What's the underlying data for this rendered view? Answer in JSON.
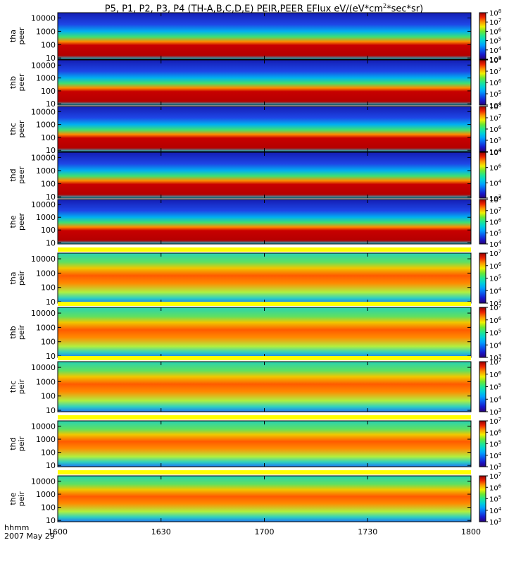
{
  "title_parts": {
    "prefix": "P5, P1, P2, P3, P4 (TH-A,B,C,D,E) PEIR,PEER EFlux eV/(eV*cm",
    "sup": "2",
    "suffix": "*sec*sr)"
  },
  "footer": {
    "time_label": "hhmm",
    "date_label": "2007 May 29"
  },
  "chart_data": {
    "type": "heatmap",
    "title": "P5, P1, P2, P3, P4 (TH-A,B,C,D,E) PEIR,PEER EFlux eV/(eV*cm2*sec*sr)",
    "x_ticks": [
      "1600",
      "1630",
      "1700",
      "1730",
      "1800"
    ],
    "xlim": [
      "16:00",
      "18:00"
    ],
    "y_scale": "log",
    "y_ticks": [
      "10",
      "100",
      "1000",
      "10000"
    ],
    "ylim": [
      8,
      25000
    ],
    "panels": [
      {
        "probe": "tha",
        "species": "peer",
        "ylabel": [
          "tha",
          "peer"
        ],
        "y_ticks": [
          "10",
          "100",
          "1000",
          "10000"
        ],
        "colorbar": {
          "min_exp": 3,
          "max_exp": 8,
          "labels": [
            "10^3",
            "10^4",
            "10^5",
            "10^6",
            "10^7",
            "10^8"
          ]
        }
      },
      {
        "probe": "thb",
        "species": "peer",
        "ylabel": [
          "thb",
          "peer"
        ],
        "y_ticks": [
          "10",
          "100",
          "1000",
          "10000"
        ],
        "colorbar": {
          "min_exp": 4,
          "max_exp": 8,
          "labels": [
            "10^4",
            "10^5",
            "10^6",
            "10^7",
            "10^8"
          ]
        }
      },
      {
        "probe": "thc",
        "species": "peer",
        "ylabel": [
          "thc",
          "peer"
        ],
        "y_ticks": [
          "10",
          "100",
          "1000",
          "10000"
        ],
        "colorbar": {
          "min_exp": 4,
          "max_exp": 8,
          "labels": [
            "10^4",
            "10^5",
            "10^6",
            "10^7",
            "10^8"
          ]
        }
      },
      {
        "probe": "thd",
        "species": "peer",
        "ylabel": [
          "thd",
          "peer"
        ],
        "y_ticks": [
          "10",
          "100",
          "1000",
          "10000"
        ],
        "colorbar": {
          "min_exp": 2,
          "max_exp": 8,
          "labels": [
            "10^2",
            "10^4",
            "10^6",
            "10^8"
          ]
        }
      },
      {
        "probe": "the",
        "species": "peer",
        "ylabel": [
          "the",
          "peer"
        ],
        "y_ticks": [
          "10",
          "100",
          "1000",
          "10000"
        ],
        "colorbar": {
          "min_exp": 4,
          "max_exp": 8,
          "labels": [
            "10^4",
            "10^5",
            "10^6",
            "10^7",
            "10^8"
          ]
        }
      },
      {
        "probe": "tha",
        "species": "peir",
        "ylabel": [
          "tha",
          "peir"
        ],
        "y_ticks": [
          "10",
          "100",
          "1000",
          "10000"
        ],
        "colorbar": {
          "min_exp": 3,
          "max_exp": 7,
          "labels": [
            "10^3",
            "10^4",
            "10^5",
            "10^6",
            "10^7"
          ]
        }
      },
      {
        "probe": "thb",
        "species": "peir",
        "ylabel": [
          "thb",
          "peir"
        ],
        "y_ticks": [
          "10",
          "100",
          "1000",
          "10000"
        ],
        "colorbar": {
          "min_exp": 3,
          "max_exp": 7,
          "labels": [
            "10^3",
            "10^4",
            "10^5",
            "10^6",
            "10^7"
          ]
        }
      },
      {
        "probe": "thc",
        "species": "peir",
        "ylabel": [
          "thc",
          "peir"
        ],
        "y_ticks": [
          "10",
          "100",
          "1000",
          "10000"
        ],
        "colorbar": {
          "min_exp": 3,
          "max_exp": 7,
          "labels": [
            "10^3",
            "10^4",
            "10^5",
            "10^6",
            "10^7"
          ]
        }
      },
      {
        "probe": "thd",
        "species": "peir",
        "ylabel": [
          "thd",
          "peir"
        ],
        "y_ticks": [
          "10",
          "100",
          "1000",
          "10000"
        ],
        "colorbar": {
          "min_exp": 3,
          "max_exp": 7,
          "labels": [
            "10^3",
            "10^4",
            "10^5",
            "10^6",
            "10^7"
          ]
        }
      },
      {
        "probe": "the",
        "species": "peir",
        "ylabel": [
          "the",
          "peir"
        ],
        "y_ticks": [
          "10",
          "100",
          "1000",
          "10000"
        ],
        "colorbar": {
          "min_exp": 3,
          "max_exp": 7,
          "labels": [
            "10^3",
            "10^4",
            "10^5",
            "10^6",
            "10^7"
          ]
        }
      }
    ],
    "colormap": "rainbow",
    "colors": {
      "low": "#1e1ec8",
      "mid": "#3cdc3c",
      "high": "#c80000",
      "gap": "#ffff00"
    }
  }
}
